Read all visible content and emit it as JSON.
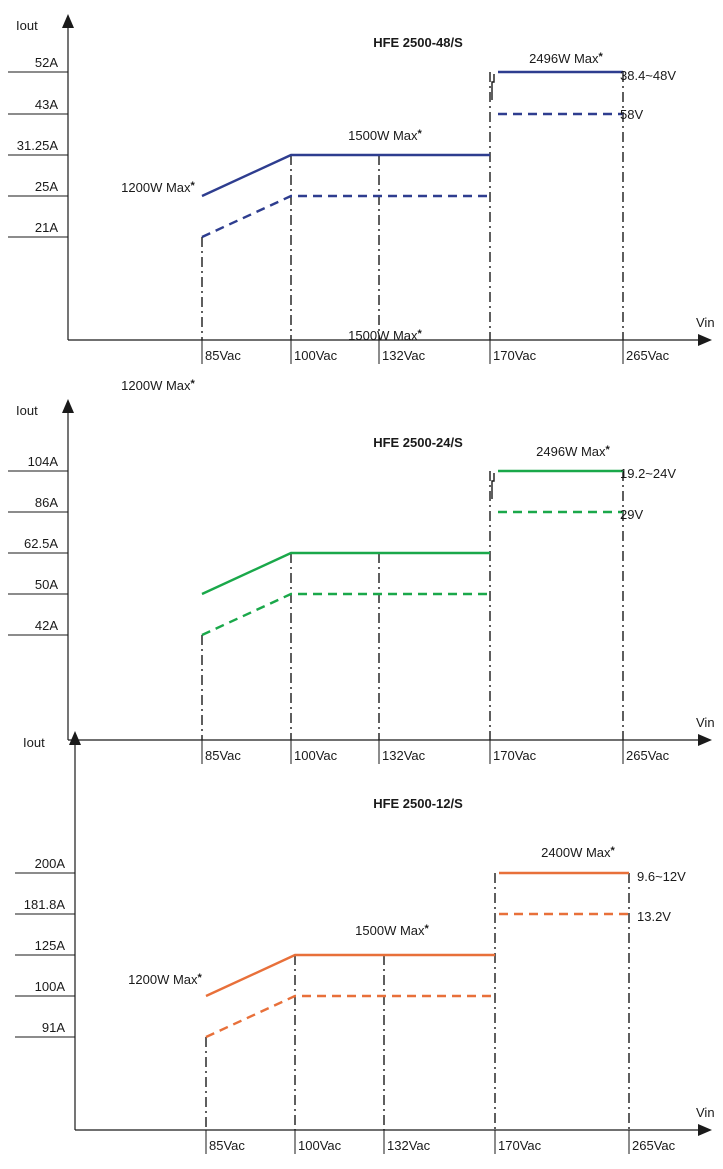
{
  "chart_data": [
    {
      "type": "line",
      "title": "HFE 2500-48/S",
      "ylabel": "Iout",
      "xlabel": "Vin",
      "color": "#2e3d8f",
      "y_ticks": [
        "52A",
        "43A",
        "31.25A",
        "25A",
        "21A"
      ],
      "x_ticks": [
        "85Vac",
        "100Vac",
        "132Vac",
        "170Vac",
        "265Vac"
      ],
      "series": [
        {
          "name": "38.4~48V",
          "style": "solid",
          "points": [
            [
              "85Vac",
              "25A"
            ],
            [
              "100Vac",
              "31.25A"
            ],
            [
              "170Vac",
              "31.25A"
            ],
            [
              "170Vac",
              "52A"
            ],
            [
              "265Vac",
              "52A"
            ]
          ]
        },
        {
          "name": "58V",
          "style": "dashed",
          "points": [
            [
              "85Vac",
              "21A"
            ],
            [
              "100Vac",
              "25A"
            ],
            [
              "170Vac",
              "25A"
            ],
            [
              "170Vac",
              "43A"
            ],
            [
              "265Vac",
              "43A"
            ]
          ]
        }
      ],
      "annotations": [
        {
          "text": "1200W Max",
          "star": "*"
        },
        {
          "text": "1500W Max",
          "star": "*"
        },
        {
          "text": "2496W Max",
          "star": "*"
        }
      ]
    },
    {
      "type": "line",
      "title": "HFE 2500-24/S",
      "ylabel": "Iout",
      "xlabel": "Vin",
      "color": "#1aa84a",
      "y_ticks": [
        "104A",
        "86A",
        "62.5A",
        "50A",
        "42A"
      ],
      "x_ticks": [
        "85Vac",
        "100Vac",
        "132Vac",
        "170Vac",
        "265Vac"
      ],
      "series": [
        {
          "name": "19.2~24V",
          "style": "solid",
          "points": [
            [
              "85Vac",
              "50A"
            ],
            [
              "100Vac",
              "62.5A"
            ],
            [
              "170Vac",
              "62.5A"
            ],
            [
              "170Vac",
              "104A"
            ],
            [
              "265Vac",
              "104A"
            ]
          ]
        },
        {
          "name": "29V",
          "style": "dashed",
          "points": [
            [
              "85Vac",
              "42A"
            ],
            [
              "100Vac",
              "50A"
            ],
            [
              "170Vac",
              "50A"
            ],
            [
              "170Vac",
              "86A"
            ],
            [
              "265Vac",
              "86A"
            ]
          ]
        }
      ],
      "annotations": [
        {
          "text": "1200W Max",
          "star": "*"
        },
        {
          "text": "1500W Max",
          "star": "*"
        },
        {
          "text": "2496W Max",
          "star": "*"
        }
      ]
    },
    {
      "type": "line",
      "title": "HFE 2500-12/S",
      "ylabel": "Iout",
      "xlabel": "Vin",
      "color": "#e8703a",
      "y_ticks": [
        "200A",
        "181.8A",
        "125A",
        "100A",
        "91A"
      ],
      "x_ticks": [
        "85Vac",
        "100Vac",
        "132Vac",
        "170Vac",
        "265Vac"
      ],
      "series": [
        {
          "name": "9.6~12V",
          "style": "solid",
          "points": [
            [
              "85Vac",
              "100A"
            ],
            [
              "100Vac",
              "125A"
            ],
            [
              "170Vac",
              "125A"
            ],
            [
              "170Vac",
              "200A"
            ],
            [
              "265Vac",
              "200A"
            ]
          ]
        },
        {
          "name": "13.2V",
          "style": "dashed",
          "points": [
            [
              "85Vac",
              "91A"
            ],
            [
              "100Vac",
              "100A"
            ],
            [
              "170Vac",
              "100A"
            ],
            [
              "170Vac",
              "181.8A"
            ],
            [
              "265Vac",
              "181.8A"
            ]
          ]
        }
      ],
      "annotations": [
        {
          "text": "1200W Max",
          "star": "*"
        },
        {
          "text": "1500W Max",
          "star": "*"
        },
        {
          "text": "2400W Max",
          "star": "*"
        }
      ]
    }
  ]
}
